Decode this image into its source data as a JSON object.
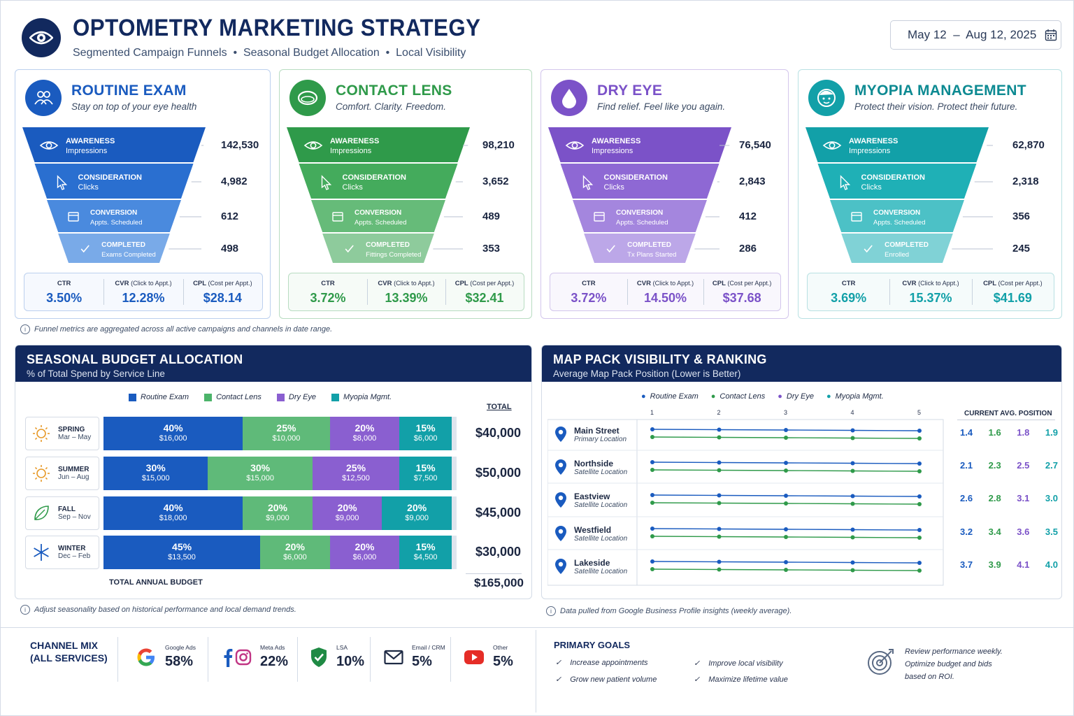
{
  "header": {
    "title": "OPTOMETRY MARKETING STRATEGY",
    "subtitle": "Segmented Campaign Funnels  •  Seasonal Budget Allocation  •  Local Visibility",
    "date_range": "May 12  –  Aug 12, 2025",
    "logo_icon": "eye-icon",
    "calendar_icon": "calendar-icon"
  },
  "funnels": [
    {
      "title": "ROUTINE EXAM",
      "tagline": "Stay on top of your eye health",
      "color": "#1a5bbf",
      "icon": "people-icon",
      "stages": [
        {
          "name": "AWARENESS",
          "sub": "Impressions",
          "value": "142,530"
        },
        {
          "name": "CONSIDERATION",
          "sub": "Clicks",
          "value": "4,982"
        },
        {
          "name": "CONVERSION",
          "sub": "Appts. Scheduled",
          "value": "612"
        },
        {
          "name": "COMPLETED",
          "sub": "Exams Completed",
          "value": "498"
        }
      ],
      "ctr": "3.50%",
      "cvr": "12.28%",
      "cpl": "$28.14"
    },
    {
      "title": "CONTACT LENS",
      "tagline": "Comfort. Clarity. Freedom.",
      "color": "#2f9a4a",
      "icon": "lens-icon",
      "stages": [
        {
          "name": "AWARENESS",
          "sub": "Impressions",
          "value": "98,210"
        },
        {
          "name": "CONSIDERATION",
          "sub": "Clicks",
          "value": "3,652"
        },
        {
          "name": "CONVERSION",
          "sub": "Appts. Scheduled",
          "value": "489"
        },
        {
          "name": "COMPLETED",
          "sub": "Fittings Completed",
          "value": "353"
        }
      ],
      "ctr": "3.72%",
      "cvr": "13.39%",
      "cpl": "$32.41"
    },
    {
      "title": "DRY EYE",
      "tagline": "Find relief. Feel like you again.",
      "color": "#7b52c8",
      "icon": "drop-icon",
      "stages": [
        {
          "name": "AWARENESS",
          "sub": "Impressions",
          "value": "76,540"
        },
        {
          "name": "CONSIDERATION",
          "sub": "Clicks",
          "value": "2,843"
        },
        {
          "name": "CONVERSION",
          "sub": "Appts. Scheduled",
          "value": "412"
        },
        {
          "name": "COMPLETED",
          "sub": "Tx Plans Started",
          "value": "286"
        }
      ],
      "ctr": "3.72%",
      "cvr": "14.50%",
      "cpl": "$37.68"
    },
    {
      "title": "MYOPIA MANAGEMENT",
      "tagline": "Protect their vision. Protect their future.",
      "color": "#12a0a8",
      "icon": "child-face-icon",
      "stages": [
        {
          "name": "AWARENESS",
          "sub": "Impressions",
          "value": "62,870"
        },
        {
          "name": "CONSIDERATION",
          "sub": "Clicks",
          "value": "2,318"
        },
        {
          "name": "CONVERSION",
          "sub": "Appts. Scheduled",
          "value": "356"
        },
        {
          "name": "COMPLETED",
          "sub": "Enrolled",
          "value": "245"
        }
      ],
      "ctr": "3.69%",
      "cvr": "15.37%",
      "cpl": "$41.69"
    }
  ],
  "metric_labels": {
    "ctr": "CTR",
    "cvr": "CVR",
    "cvr_sub": "(Click to Appt.)",
    "cpl": "CPL",
    "cpl_sub": "(Cost per Appt.)"
  },
  "funnel_note": "Funnel metrics are aggregated across all active campaigns and channels in date range.",
  "budget": {
    "title": "SEASONAL BUDGET ALLOCATION",
    "subtitle": "% of Total Spend by Service Line",
    "legend": [
      "Routine Exam",
      "Contact Lens",
      "Dry Eye",
      "Myopia Mgmt."
    ],
    "total_header": "TOTAL",
    "seasons": [
      {
        "name": "SPRING",
        "range": "Mar – May",
        "icon": "sun-icon",
        "total": "$40,000",
        "segments": [
          {
            "pct": "40%",
            "amt": "$16,000",
            "share": 40
          },
          {
            "pct": "25%",
            "amt": "$10,000",
            "share": 25
          },
          {
            "pct": "20%",
            "amt": "$8,000",
            "share": 20
          },
          {
            "pct": "15%",
            "amt": "$6,000",
            "share": 15
          }
        ]
      },
      {
        "name": "SUMMER",
        "range": "Jun – Aug",
        "icon": "sun-icon",
        "total": "$50,000",
        "segments": [
          {
            "pct": "30%",
            "amt": "$15,000",
            "share": 30
          },
          {
            "pct": "30%",
            "amt": "$15,000",
            "share": 30
          },
          {
            "pct": "25%",
            "amt": "$12,500",
            "share": 25
          },
          {
            "pct": "15%",
            "amt": "$7,500",
            "share": 15
          }
        ]
      },
      {
        "name": "FALL",
        "range": "Sep – Nov",
        "icon": "leaf-icon",
        "total": "$45,000",
        "segments": [
          {
            "pct": "40%",
            "amt": "$18,000",
            "share": 40
          },
          {
            "pct": "20%",
            "amt": "$9,000",
            "share": 20
          },
          {
            "pct": "20%",
            "amt": "$9,000",
            "share": 20
          },
          {
            "pct": "20%",
            "amt": "$9,000",
            "share": 20
          }
        ]
      },
      {
        "name": "WINTER",
        "range": "Dec – Feb",
        "icon": "snowflake-icon",
        "total": "$30,000",
        "segments": [
          {
            "pct": "45%",
            "amt": "$13,500",
            "share": 45
          },
          {
            "pct": "20%",
            "amt": "$6,000",
            "share": 20
          },
          {
            "pct": "20%",
            "amt": "$6,000",
            "share": 20
          },
          {
            "pct": "15%",
            "amt": "$4,500",
            "share": 15
          }
        ]
      }
    ],
    "annual_label": "TOTAL ANNUAL BUDGET",
    "annual_total": "$165,000",
    "note": "Adjust seasonality based on historical performance and local demand trends."
  },
  "map_pack": {
    "title": "MAP PACK VISIBILITY & RANKING",
    "subtitle": "Average Map Pack Position (Lower is Better)",
    "legend": [
      "Routine Exam",
      "Contact Lens",
      "Dry Eye",
      "Myopia Mgmt."
    ],
    "axis": [
      "1",
      "2",
      "3",
      "4",
      "5"
    ],
    "current_header": "CURRENT AVG. POSITION",
    "locations": [
      {
        "name": "Main Street",
        "type": "Primary Location",
        "positions": [
          "1.4",
          "1.6",
          "1.8",
          "1.9"
        ]
      },
      {
        "name": "Northside",
        "type": "Satellite Location",
        "positions": [
          "2.1",
          "2.3",
          "2.5",
          "2.7"
        ]
      },
      {
        "name": "Eastview",
        "type": "Satellite Location",
        "positions": [
          "2.6",
          "2.8",
          "3.1",
          "3.0"
        ]
      },
      {
        "name": "Westfield",
        "type": "Satellite Location",
        "positions": [
          "3.2",
          "3.4",
          "3.6",
          "3.5"
        ]
      },
      {
        "name": "Lakeside",
        "type": "Satellite Location",
        "positions": [
          "3.7",
          "3.9",
          "4.1",
          "4.0"
        ]
      }
    ],
    "note": "Data pulled from Google Business Profile insights (weekly average)."
  },
  "channel_mix": {
    "title": "CHANNEL MIX\n(ALL SERVICES)",
    "channels": [
      {
        "name": "Google Ads",
        "value": "58%",
        "icon": "google-icon"
      },
      {
        "name": "Meta Ads",
        "value": "22%",
        "icon": "facebook-instagram-icon"
      },
      {
        "name": "LSA",
        "value": "10%",
        "icon": "shield-check-icon"
      },
      {
        "name": "Email / CRM",
        "value": "5%",
        "icon": "mail-icon"
      },
      {
        "name": "Other",
        "value": "5%",
        "icon": "youtube-icon"
      }
    ]
  },
  "goals": {
    "title": "PRIMARY GOALS",
    "items": [
      "Increase appointments",
      "Grow new patient volume",
      "Improve local visibility",
      "Maximize lifetime value"
    ],
    "review_note": "Review performance weekly.\nOptimize budget and bids\nbased on ROI."
  },
  "colors": {
    "navy": "#12295e",
    "routine": "#1a5bbf",
    "contact": "#2f9a4a",
    "dry": "#7b52c8",
    "myopia": "#12a0a8"
  }
}
